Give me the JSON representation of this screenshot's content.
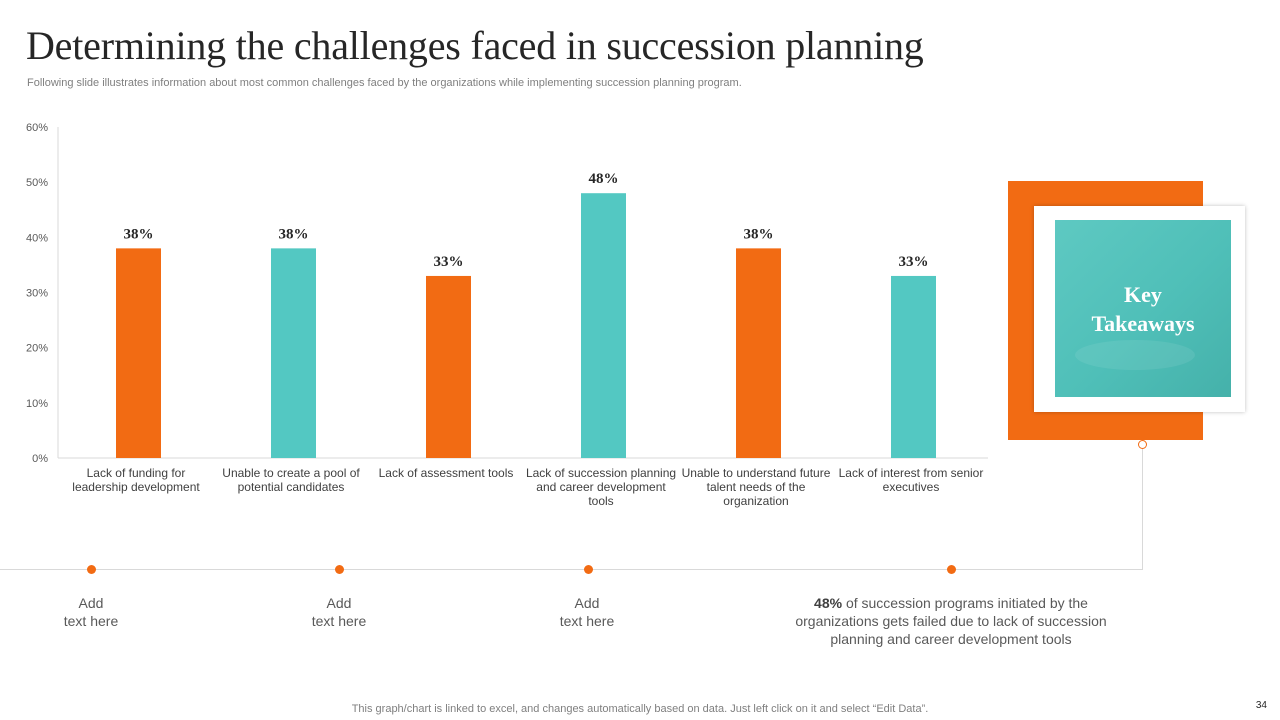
{
  "title": "Determining the challenges faced in succession planning",
  "subtitle": "Following slide illustrates information about most common challenges faced by the organizations while implementing succession planning program.",
  "chart_data": {
    "type": "bar",
    "title": "",
    "xlabel": "",
    "ylabel": "",
    "ylim": [
      0,
      60
    ],
    "yticks": [
      "0%",
      "10%",
      "20%",
      "30%",
      "40%",
      "50%",
      "60%"
    ],
    "categories": [
      "Lack of funding for leadership development",
      "Unable to create a pool of potential candidates",
      "Lack of assessment tools",
      "Lack of succession planning and career development tools",
      "Unable to understand future talent needs of the organization",
      "Lack of interest from senior executives"
    ],
    "values": [
      38,
      38,
      33,
      48,
      38,
      33
    ],
    "data_labels": [
      "38%",
      "38%",
      "33%",
      "48%",
      "38%",
      "33%"
    ],
    "bar_colors": [
      "#f26b13",
      "#53c8c2",
      "#f26b13",
      "#53c8c2",
      "#f26b13",
      "#53c8c2"
    ]
  },
  "notes": [
    {
      "text": "Add\ntext here"
    },
    {
      "text": "Add\ntext here"
    },
    {
      "text": "Add\ntext here"
    }
  ],
  "takeaway": {
    "highlight": "48%",
    "text": " of succession programs initiated by the organizations gets failed due to lack of succession planning and career development tools"
  },
  "key_takeaways_label": "Key\nTakeaways",
  "footer": "This graph/chart is linked to excel,  and changes automatically based on data. Just left click on it and select “Edit Data”.",
  "page_number": "34",
  "colors": {
    "accent": "#f26b13",
    "teal": "#53c8c2",
    "text": "#262626"
  }
}
